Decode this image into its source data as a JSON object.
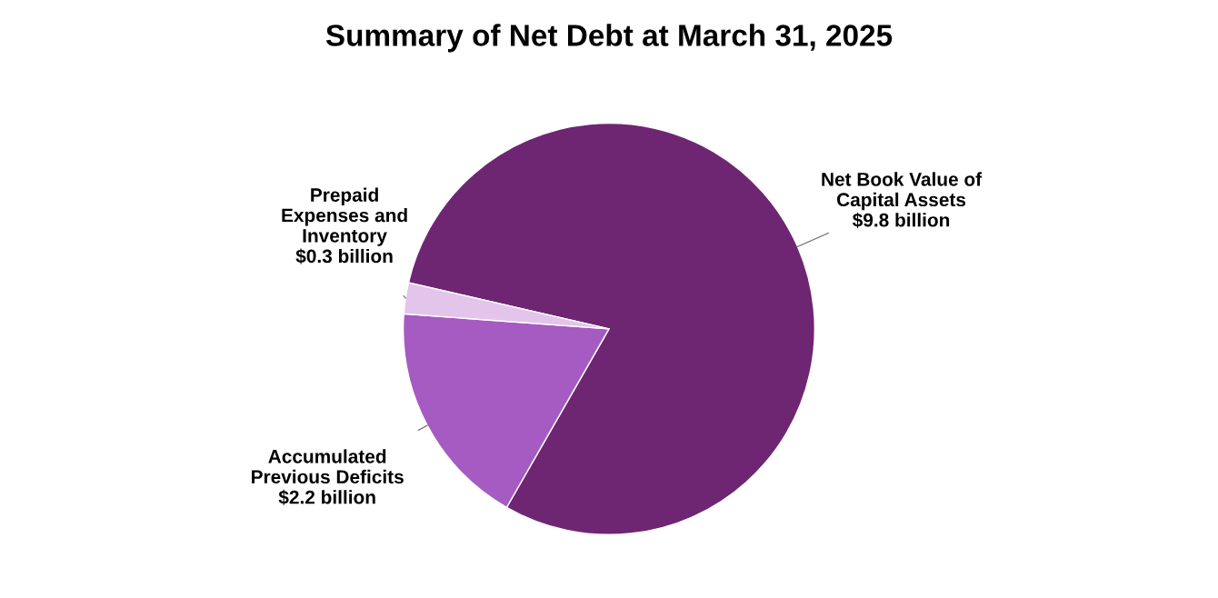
{
  "chart_data": {
    "type": "pie",
    "title": "Summary of Net Debt at March 31, 2025",
    "categories": [
      "Net Book Value of\nCapital Assets",
      "Accumulated\nPrevious Deficits",
      "Prepaid\nExpenses and\nInventory"
    ],
    "values": [
      9.8,
      2.2,
      0.3
    ],
    "value_labels": [
      "$9.8 billion",
      "$2.2 billion",
      "$0.3 billion"
    ],
    "colors": [
      "#6e2673",
      "#a55bc2",
      "#e3c4ea"
    ]
  }
}
